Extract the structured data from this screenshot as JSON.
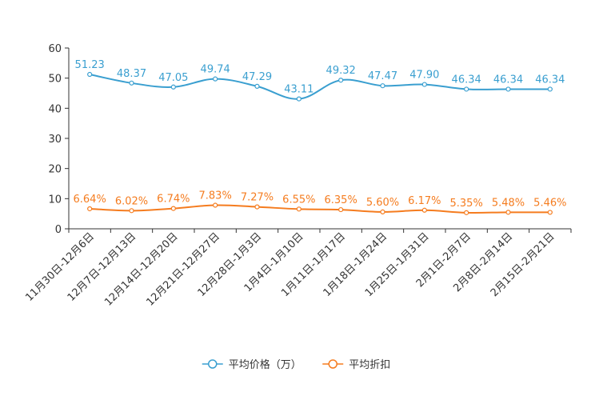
{
  "chart_data": {
    "type": "line",
    "title": "",
    "xlabel": "",
    "ylabel": "",
    "ylim": [
      0,
      60
    ],
    "yticks": [
      0,
      10,
      20,
      30,
      40,
      50,
      60
    ],
    "categories": [
      "11月30日-12月6日",
      "12月7日-12月13日",
      "12月14日-12月20日",
      "12月21日-12月27日",
      "12月28日-1月3日",
      "1月4日-1月10日",
      "1月11日-1月17日",
      "1月18日-1月24日",
      "1月25日-1月31日",
      "2月1日-2月7日",
      "2月8日-2月14日",
      "2月15日-2月21日"
    ],
    "series": [
      {
        "name": "平均价格（万）",
        "color": "#3a9fd0",
        "values": [
          51.23,
          48.37,
          47.05,
          49.74,
          47.29,
          43.11,
          49.32,
          47.47,
          47.9,
          46.34,
          46.34,
          46.34
        ],
        "labels": [
          "51.23",
          "48.37",
          "47.05",
          "49.74",
          "47.29",
          "43.11",
          "49.32",
          "47.47",
          "47.90",
          "46.34",
          "46.34",
          "46.34"
        ]
      },
      {
        "name": "平均折扣",
        "color": "#f57c1f",
        "values": [
          6.64,
          6.02,
          6.74,
          7.83,
          7.27,
          6.55,
          6.35,
          5.6,
          6.17,
          5.35,
          5.48,
          5.46
        ],
        "labels": [
          "6.64%",
          "6.02%",
          "6.74%",
          "7.83%",
          "7.27%",
          "6.55%",
          "6.35%",
          "5.60%",
          "6.17%",
          "5.35%",
          "5.48%",
          "5.46%"
        ]
      }
    ],
    "legend_position": "bottom-center"
  }
}
